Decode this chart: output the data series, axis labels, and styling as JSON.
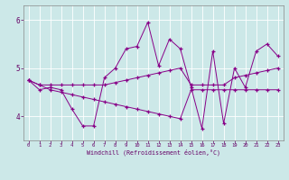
{
  "xlabel": "Windchill (Refroidissement éolien,°C)",
  "bg_color": "#cce8e8",
  "line_color": "#880088",
  "grid_color": "#ffffff",
  "x": [
    0,
    1,
    2,
    3,
    4,
    5,
    6,
    7,
    8,
    9,
    10,
    11,
    12,
    13,
    14,
    15,
    16,
    17,
    18,
    19,
    20,
    21,
    22,
    23
  ],
  "series1": [
    4.75,
    4.55,
    4.6,
    4.55,
    4.15,
    3.8,
    3.8,
    4.8,
    5.0,
    5.4,
    5.45,
    5.95,
    5.05,
    5.6,
    5.4,
    4.6,
    3.75,
    5.35,
    3.85,
    5.0,
    4.6,
    5.35,
    5.5,
    5.25
  ],
  "series2": [
    4.75,
    4.65,
    4.65,
    4.65,
    4.65,
    4.65,
    4.65,
    4.65,
    4.7,
    4.75,
    4.8,
    4.85,
    4.9,
    4.95,
    5.0,
    4.65,
    4.65,
    4.65,
    4.65,
    4.8,
    4.85,
    4.9,
    4.95,
    5.0
  ],
  "series3": [
    4.75,
    4.65,
    4.55,
    4.5,
    4.45,
    4.4,
    4.35,
    4.3,
    4.25,
    4.2,
    4.15,
    4.1,
    4.05,
    4.0,
    3.95,
    4.55,
    4.55,
    4.55,
    4.55,
    4.55,
    4.55,
    4.55,
    4.55,
    4.55
  ],
  "ylim": [
    3.5,
    6.3
  ],
  "yticks": [
    4,
    5,
    6
  ],
  "xticks": [
    0,
    1,
    2,
    3,
    4,
    5,
    6,
    7,
    8,
    9,
    10,
    11,
    12,
    13,
    14,
    15,
    16,
    17,
    18,
    19,
    20,
    21,
    22,
    23
  ],
  "figsize": [
    3.2,
    2.0
  ],
  "dpi": 100
}
